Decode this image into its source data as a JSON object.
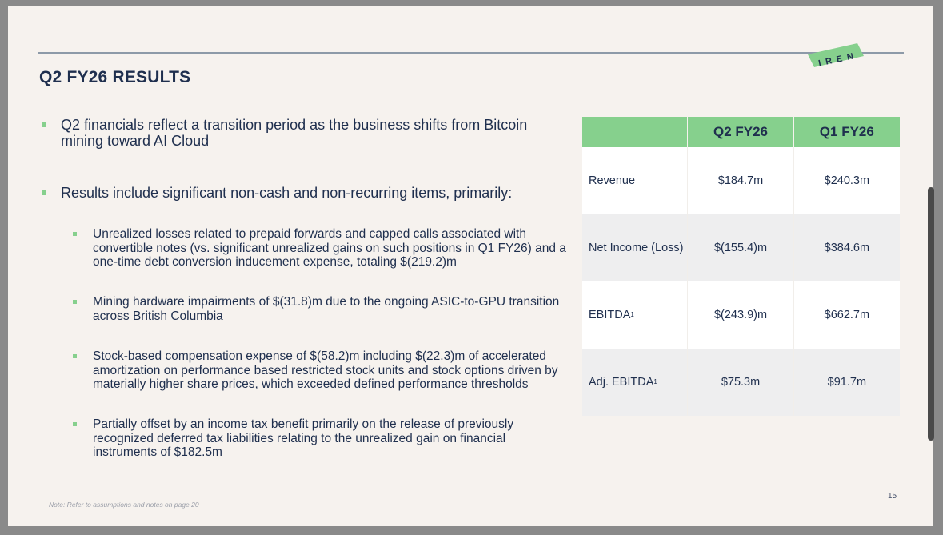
{
  "slide": {
    "title": "Q2 FY26 RESULTS",
    "logo_text": "IREN",
    "page_number": "15",
    "note": "Note: Refer to assumptions and notes on page 20"
  },
  "bullets": [
    {
      "text": "Q2 financials reflect a transition period as the business shifts from Bitcoin mining toward AI Cloud"
    },
    {
      "text": "Results include significant non-cash and non-recurring items, primarily:"
    }
  ],
  "sub_bullets": [
    {
      "text": "Unrealized losses related to prepaid forwards and capped calls associated with convertible notes (vs. significant unrealized gains on such positions in Q1 FY26) and a one-time debt conversion inducement expense, totaling $(219.2)m"
    },
    {
      "text": "Mining hardware impairments of $(31.8)m due to the ongoing ASIC-to-GPU transition across British Columbia"
    },
    {
      "text": "Stock-based compensation expense of $(58.2)m including $(22.3)m of accelerated amortization on performance based restricted stock units and stock options driven by materially higher share prices, which exceeded defined performance thresholds"
    },
    {
      "text": "Partially offset by an income tax benefit primarily on the release of previously recognized deferred tax liabilities relating to the unrealized gain on financial instruments of $182.5m"
    }
  ],
  "table": {
    "headers": [
      "",
      "Q2 FY26",
      "Q1 FY26"
    ],
    "rows": [
      {
        "label": "Revenue",
        "sup": "",
        "q2": "$184.7m",
        "q1": "$240.3m"
      },
      {
        "label": "Net Income (Loss)",
        "sup": "",
        "q2": "$(155.4)m",
        "q1": "$384.6m"
      },
      {
        "label": "EBITDA",
        "sup": "1",
        "q2": "$(243.9)m",
        "q1": "$662.7m"
      },
      {
        "label": "Adj. EBITDA",
        "sup": "1",
        "q2": "$75.3m",
        "q1": "$91.7m"
      }
    ]
  },
  "colors": {
    "accent_green": "#86d08d",
    "navy_text": "#1f2f4e",
    "background": "#f6f2ee"
  }
}
